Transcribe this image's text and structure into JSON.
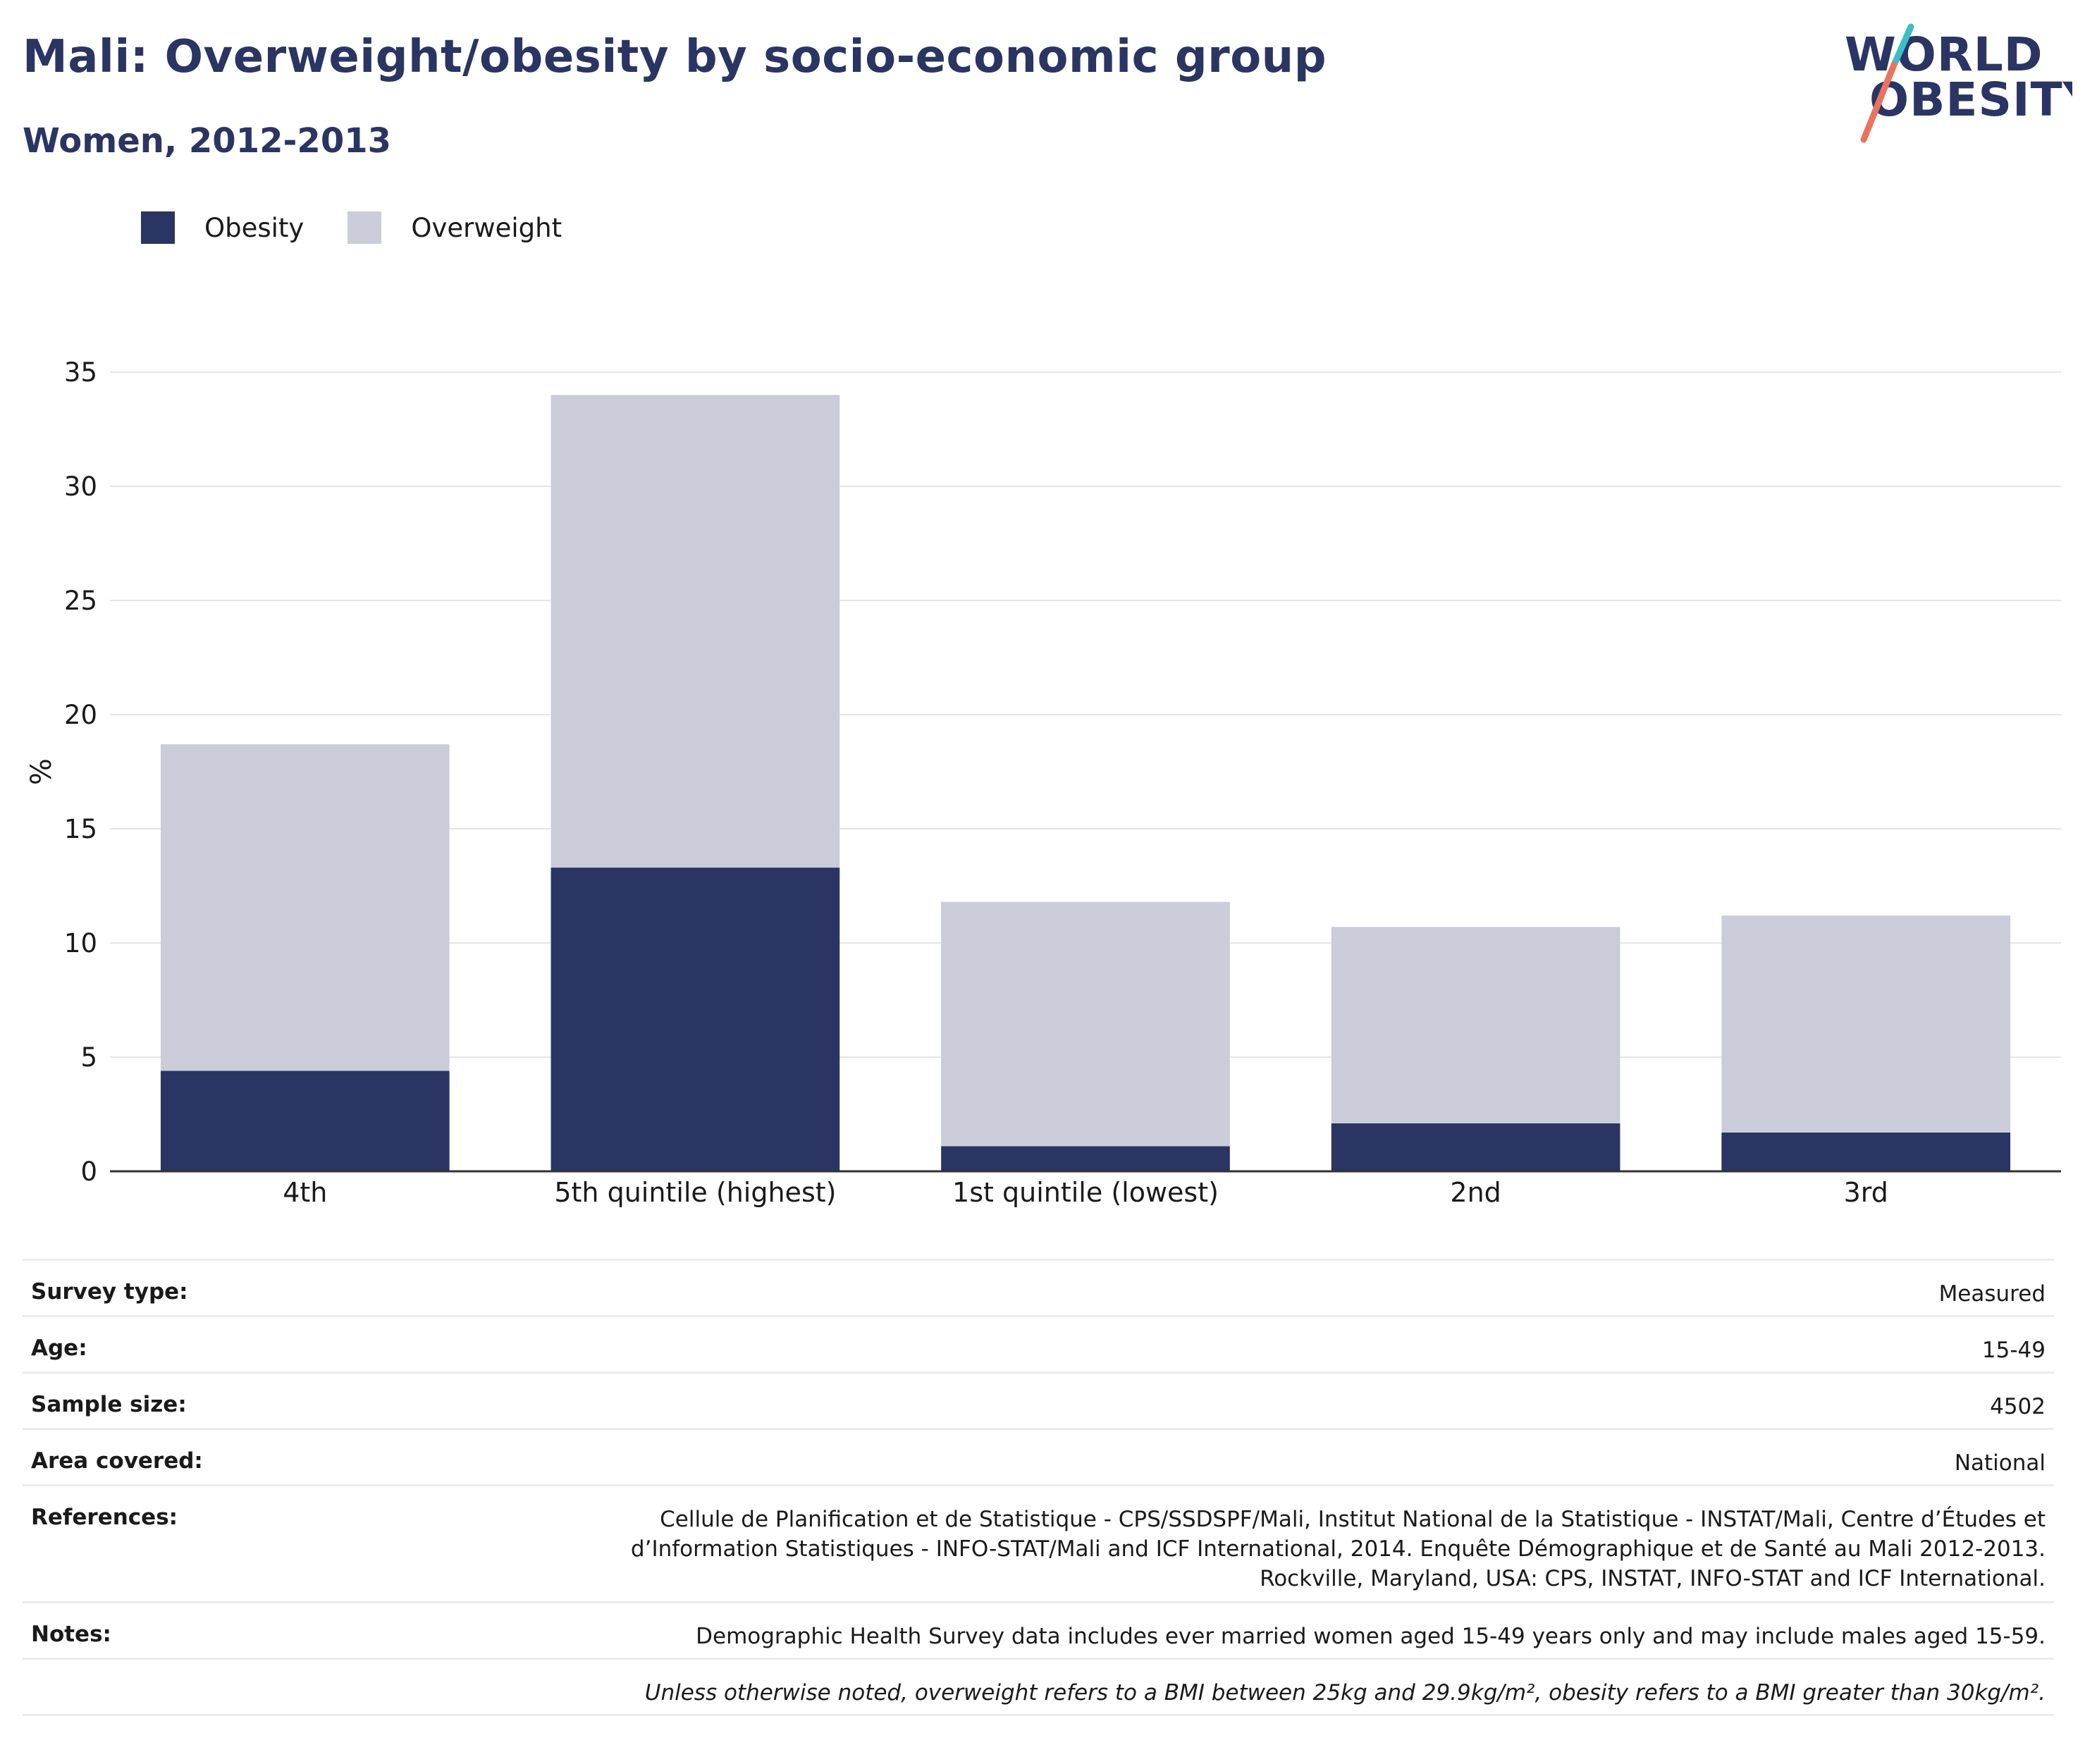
{
  "header": {
    "title": "Mali: Overweight/obesity by socio-economic group",
    "subtitle": "Women, 2012-2013"
  },
  "logo": {
    "line1": "WORLD",
    "line2": "OBESITY",
    "colors": {
      "text": "#2b3563",
      "slash_top": "#3bbfc6",
      "slash_bottom": "#e8735f"
    }
  },
  "legend": {
    "items": [
      {
        "label": "Obesity",
        "color": "#2b3563"
      },
      {
        "label": "Overweight",
        "color": "#cacdd9"
      }
    ]
  },
  "chart_data": {
    "type": "bar",
    "stacked": true,
    "categories": [
      "4th",
      "5th quintile (highest)",
      "1st quintile (lowest)",
      "2nd",
      "3rd"
    ],
    "series": [
      {
        "name": "Obesity",
        "color": "#2b3563",
        "values": [
          4.4,
          13.3,
          1.1,
          2.1,
          1.7
        ]
      },
      {
        "name": "Overweight",
        "color": "#cacdd9",
        "values": [
          14.3,
          20.7,
          10.7,
          8.6,
          9.5
        ]
      }
    ],
    "xlabel": "",
    "ylabel": "%",
    "ylim": [
      0,
      35
    ],
    "yticks": [
      0,
      5,
      10,
      15,
      20,
      25,
      30,
      35
    ],
    "grid": true,
    "legend_position": "top-left"
  },
  "details": [
    {
      "key": "Survey type:",
      "value": "Measured"
    },
    {
      "key": "Age:",
      "value": "15-49"
    },
    {
      "key": "Sample size:",
      "value": "4502"
    },
    {
      "key": "Area covered:",
      "value": "National"
    },
    {
      "key": "References:",
      "lines": [
        "Cellule de Planification et de Statistique - CPS/SSDSPF/Mali, Institut National de la Statistique - INSTAT/Mali, Centre d’Études et",
        "d’Information Statistiques - INFO-STAT/Mali and ICF International, 2014. Enquête Démographique et de Santé au Mali 2012-2013.",
        "Rockville, Maryland, USA: CPS, INSTAT, INFO-STAT and ICF International."
      ]
    },
    {
      "key": "Notes:",
      "value": "Demographic Health Survey data includes ever married women aged 15-49 years only and may include males aged 15-59."
    }
  ],
  "footnote": "Unless otherwise noted, overweight refers to a BMI between 25kg and 29.9kg/m², obesity refers to a BMI greater than 30kg/m²."
}
